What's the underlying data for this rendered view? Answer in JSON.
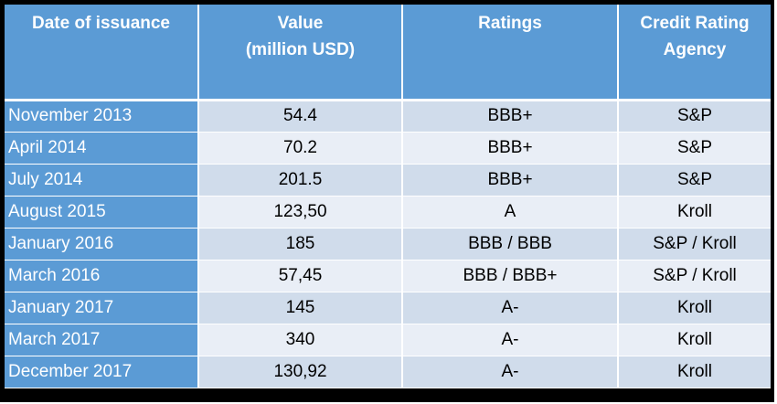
{
  "table": {
    "headers": [
      [
        "Date of issuance"
      ],
      [
        "Value",
        "(million USD)"
      ],
      [
        "Ratings"
      ],
      [
        "Credit Rating",
        "Agency"
      ]
    ],
    "rows": [
      {
        "date": "November 2013",
        "value": "54.4",
        "rating": "BBB+",
        "agency": "S&P"
      },
      {
        "date": "April 2014",
        "value": "70.2",
        "rating": "BBB+",
        "agency": "S&P"
      },
      {
        "date": "July 2014",
        "value": "201.5",
        "rating": "BBB+",
        "agency": "S&P"
      },
      {
        "date": "August 2015",
        "value": "123,50",
        "rating": "A",
        "agency": "Kroll"
      },
      {
        "date": "January 2016",
        "value": "185",
        "rating": "BBB / BBB",
        "agency": "S&P / Kroll"
      },
      {
        "date": "March 2016",
        "value": "57,45",
        "rating": "BBB / BBB+",
        "agency": "S&P / Kroll"
      },
      {
        "date": "January 2017",
        "value": "145",
        "rating": "A-",
        "agency": "Kroll"
      },
      {
        "date": "March 2017",
        "value": "340",
        "rating": "A-",
        "agency": "Kroll"
      },
      {
        "date": "December 2017",
        "value": "130,92",
        "rating": "A-",
        "agency": "Kroll"
      }
    ]
  },
  "colors": {
    "header_bg": "#5b9bd5",
    "header_text": "#ffffff",
    "row_odd": "#d0dceb",
    "row_even": "#e9eef6",
    "frame": "#000000"
  }
}
